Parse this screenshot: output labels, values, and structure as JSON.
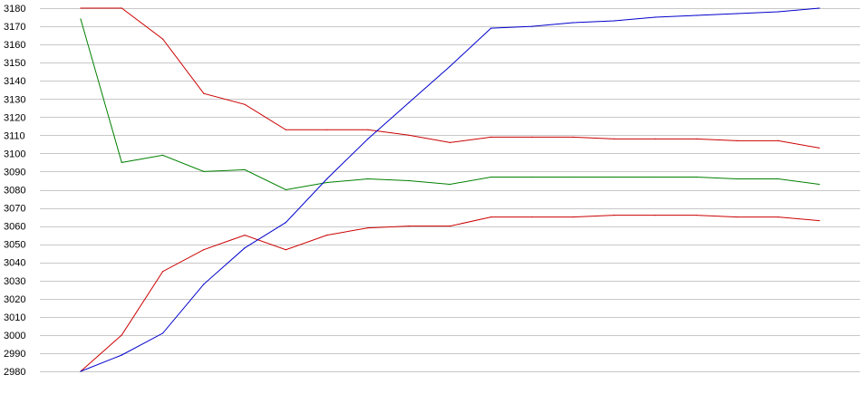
{
  "chart_data": {
    "type": "line",
    "title": "",
    "xlabel": "",
    "ylabel": "",
    "ylim": [
      2980,
      3180
    ],
    "yticks": [
      2980,
      2990,
      3000,
      3010,
      3020,
      3030,
      3040,
      3050,
      3060,
      3070,
      3080,
      3090,
      3100,
      3110,
      3120,
      3130,
      3140,
      3150,
      3160,
      3170,
      3180
    ],
    "grid": true,
    "x": [
      1,
      2,
      3,
      4,
      5,
      6,
      7,
      8,
      9,
      10,
      11,
      12,
      13,
      14,
      15,
      16,
      17,
      18,
      19
    ],
    "series": [
      {
        "color": "#cc0000",
        "values": [
          3180,
          3180,
          3163,
          3133,
          3127,
          3113,
          3113,
          3113,
          3110,
          3106,
          3109,
          3109,
          3109,
          3108,
          3108,
          3108,
          3107,
          3107,
          3103
        ]
      },
      {
        "color": "#cc0000",
        "values": [
          2980,
          3000,
          3035,
          3047,
          3055,
          3047,
          3055,
          3059,
          3060,
          3060,
          3065,
          3065,
          3065,
          3066,
          3066,
          3066,
          3065,
          3065,
          3063
        ]
      },
      {
        "color": "#008000",
        "values": [
          3174,
          3095,
          3099,
          3090,
          3091,
          3080,
          3084,
          3086,
          3085,
          3083,
          3087,
          3087,
          3087,
          3087,
          3087,
          3087,
          3086,
          3086,
          3083
        ]
      },
      {
        "color": "#0000cc",
        "values": [
          2980,
          2989,
          3001,
          3028,
          3048,
          3062,
          3086,
          3108,
          3128,
          3148,
          3169,
          3170,
          3172,
          3173,
          3175,
          3176,
          3177,
          3178,
          3180
        ]
      }
    ]
  }
}
